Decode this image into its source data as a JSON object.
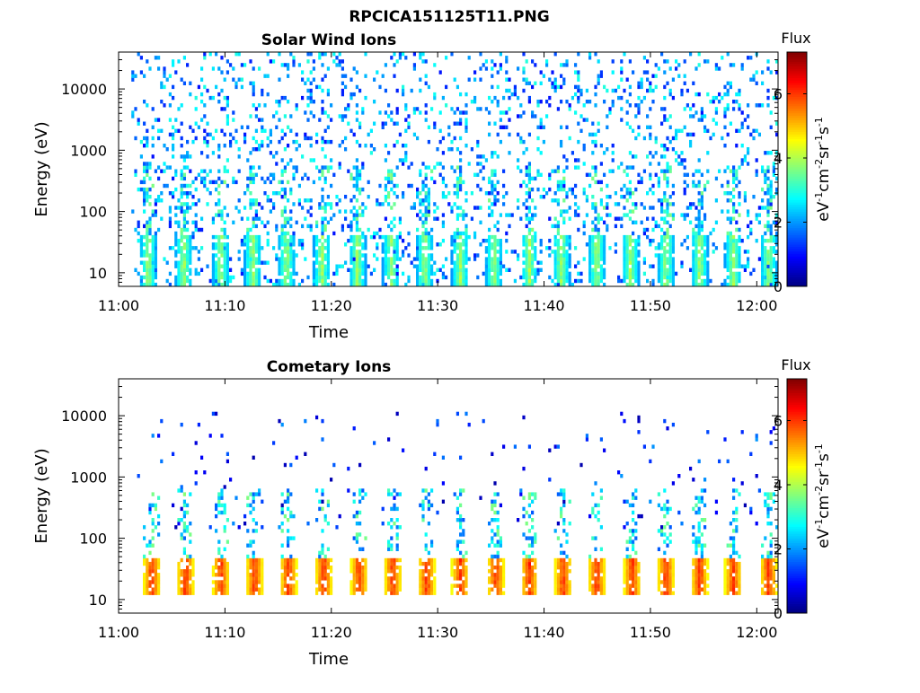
{
  "figure": {
    "title": "RPCICA151125T11.PNG"
  },
  "chart_data": [
    {
      "type": "heatmap",
      "title": "Solar Wind Ions",
      "xlabel": "Time",
      "ylabel": "Energy (eV)",
      "y_scale": "log",
      "xlim": [
        "11:00",
        "12:02"
      ],
      "ylim": [
        6,
        40000
      ],
      "x_ticks": [
        "11:00",
        "11:10",
        "11:20",
        "11:30",
        "11:40",
        "11:50",
        "12:00"
      ],
      "y_ticks": [
        "10",
        "100",
        "1000",
        "10000"
      ],
      "colorbar": {
        "title": "Flux",
        "label": "eV-1cm-2sr-1s-1",
        "label_parts": [
          [
            "eV",
            ""
          ],
          [
            "-1",
            "sup"
          ],
          [
            "cm",
            ""
          ],
          [
            "-2",
            "sup"
          ],
          [
            "sr",
            ""
          ],
          [
            "-1",
            "sup"
          ],
          [
            "s",
            ""
          ],
          [
            "-1",
            "sup"
          ]
        ],
        "range": [
          0,
          7.3
        ],
        "ticks": [
          "0",
          "2",
          "4",
          "6"
        ],
        "colormap": "jet"
      },
      "pulses": [
        "11:02:40",
        "11:06:00",
        "11:09:30",
        "11:12:30",
        "11:15:40",
        "11:19:00",
        "11:22:20",
        "11:25:30",
        "11:28:40",
        "11:32:00",
        "11:35:10",
        "11:38:30",
        "11:41:30",
        "11:44:50",
        "11:48:00",
        "11:51:20",
        "11:54:30",
        "11:57:40",
        "12:01:00"
      ],
      "background": {
        "band": [
          6,
          40000
        ],
        "level_range": [
          1,
          3
        ],
        "density": 0.14
      },
      "core": {
        "band": [
          6,
          40
        ],
        "level_range": [
          2,
          4.2
        ]
      }
    },
    {
      "type": "heatmap",
      "title": "Cometary Ions",
      "xlabel": "Time",
      "ylabel": "Energy (eV)",
      "y_scale": "log",
      "xlim": [
        "11:00",
        "12:02"
      ],
      "ylim": [
        6,
        40000
      ],
      "x_ticks": [
        "11:00",
        "11:10",
        "11:20",
        "11:30",
        "11:40",
        "11:50",
        "12:00"
      ],
      "y_ticks": [
        "10",
        "100",
        "1000",
        "10000"
      ],
      "colorbar": {
        "title": "Flux",
        "label": "eV-1cm-2sr-1s-1",
        "label_parts": [
          [
            "eV",
            ""
          ],
          [
            "-1",
            "sup"
          ],
          [
            "cm",
            ""
          ],
          [
            "-2",
            "sup"
          ],
          [
            "sr",
            ""
          ],
          [
            "-1",
            "sup"
          ],
          [
            "s",
            ""
          ],
          [
            "-1",
            "sup"
          ]
        ],
        "range": [
          0,
          7.3
        ],
        "ticks": [
          "0",
          "2",
          "4",
          "6"
        ],
        "colormap": "jet"
      },
      "pulses": [
        "11:03:00",
        "11:06:10",
        "11:09:30",
        "11:12:40",
        "11:15:50",
        "11:19:10",
        "11:22:30",
        "11:25:40",
        "11:28:50",
        "11:32:00",
        "11:35:20",
        "11:38:30",
        "11:41:40",
        "11:44:50",
        "11:48:10",
        "11:51:20",
        "11:54:30",
        "11:57:40",
        "12:01:00"
      ],
      "background": {
        "band": [
          150,
          12000
        ],
        "level_range": [
          0.3,
          2
        ],
        "density": 0.02
      },
      "core": {
        "band": [
          12,
          45
        ],
        "level_range": [
          4.5,
          6.3
        ]
      }
    }
  ]
}
